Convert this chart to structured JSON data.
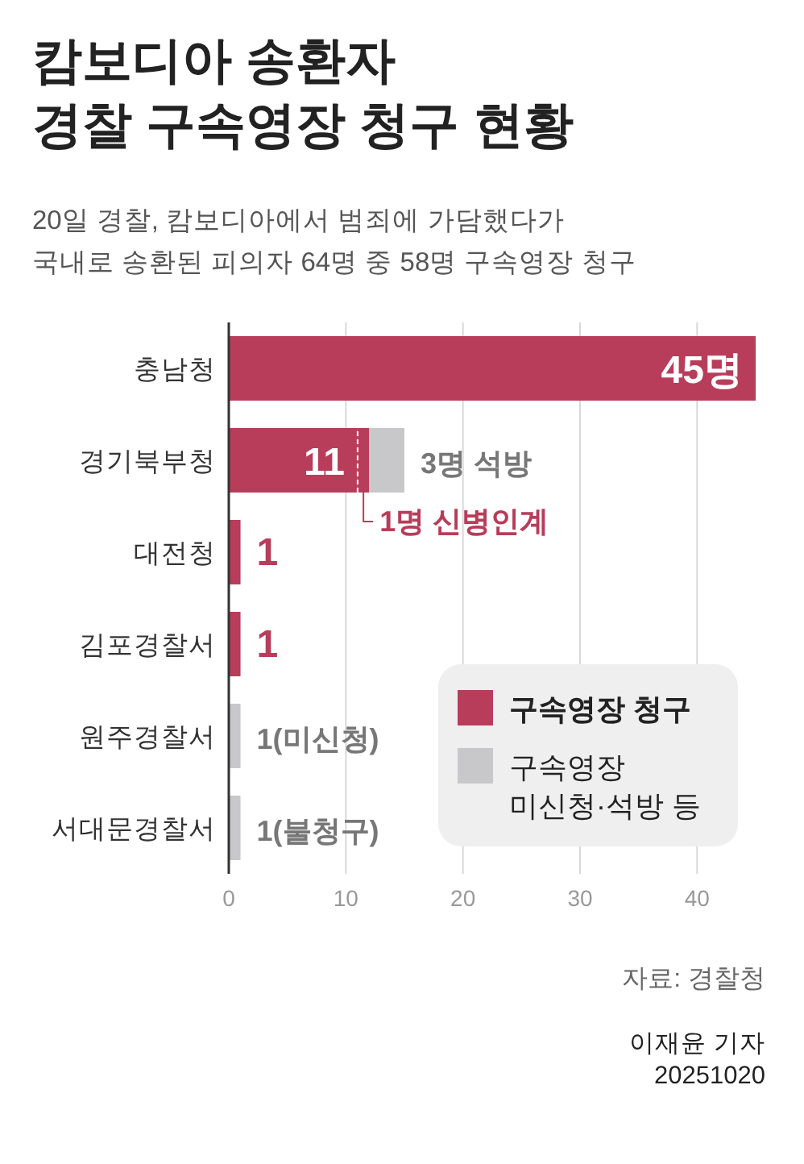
{
  "chart_data": {
    "type": "bar",
    "orientation": "horizontal",
    "stacked": true,
    "title": "캄보디아 송환자\n경찰 구속영장 청구 현황",
    "subtitle": "20일 경찰, 캄보디아에서 범죄에 가담했다가\n국내로 송환된 피의자 64명 중 58명 구속영장 청구",
    "categories": [
      "충남청",
      "경기북부청",
      "대전청",
      "김포경찰서",
      "원주경찰서",
      "서대문경찰서"
    ],
    "series": [
      {
        "name": "구속영장 청구",
        "color": "#b83d5a",
        "values": [
          45,
          11,
          1,
          1,
          0,
          0
        ],
        "value_labels": [
          "45명",
          "11",
          "1",
          "1",
          null,
          null
        ]
      },
      {
        "color": "#b83d5a",
        "values": [
          0,
          1,
          0,
          0,
          0,
          0
        ],
        "value_labels": [
          null,
          "1명 신병인계",
          null,
          null,
          null,
          null
        ]
      },
      {
        "name": "구속영장 미신청·석방 등",
        "color": "#c8c8ca",
        "values": [
          0,
          3,
          0,
          0,
          1,
          1
        ],
        "value_labels": [
          null,
          "3명 석방",
          null,
          null,
          "1(미신청)",
          "1(불청구)"
        ]
      }
    ],
    "xlim": [
      0,
      45
    ],
    "xticks": [
      0,
      10,
      20,
      30,
      40
    ],
    "grid": "x",
    "legend": "bottom right",
    "annotations": [
      "자료: 경찰청",
      "이재윤 기자",
      "20251020"
    ]
  }
}
